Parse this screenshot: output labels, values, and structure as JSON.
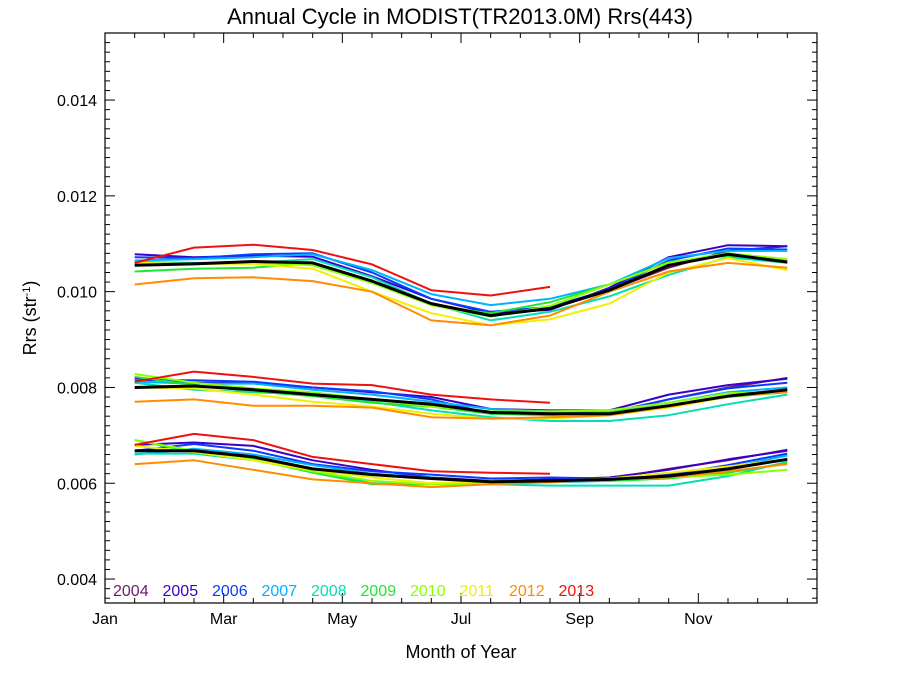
{
  "chart_data": {
    "type": "line",
    "title": "Annual Cycle in MODIST(TR2013.0M) Rrs(443)",
    "xlabel": "Month of Year",
    "ylabel_main": "Rrs (str",
    "ylabel_sup": "-1",
    "ylabel_close": ")",
    "xlim": [
      0.5,
      12.5
    ],
    "ylim": [
      0.0035,
      0.0154
    ],
    "x_ticks": [
      {
        "x": 0.5,
        "label": "Jan"
      },
      {
        "x": 2.5,
        "label": "Mar"
      },
      {
        "x": 4.5,
        "label": "May"
      },
      {
        "x": 6.5,
        "label": "Jul"
      },
      {
        "x": 8.5,
        "label": "Sep"
      },
      {
        "x": 10.5,
        "label": "Nov"
      }
    ],
    "y_ticks": [
      {
        "y": 0.004,
        "label": "0.004"
      },
      {
        "y": 0.006,
        "label": "0.006"
      },
      {
        "y": 0.008,
        "label": "0.008"
      },
      {
        "y": 0.01,
        "label": "0.010"
      },
      {
        "y": 0.012,
        "label": "0.012"
      },
      {
        "y": 0.014,
        "label": "0.014"
      }
    ],
    "grid": false,
    "legend_position": "bottom-left",
    "x": [
      1,
      2,
      3,
      4,
      5,
      6,
      7,
      8,
      9,
      10,
      11,
      12
    ],
    "groups": [
      {
        "series": [
          {
            "name": "2004",
            "color": "#6a1b6a",
            "values": [
              null,
              null,
              null,
              null,
              null,
              null,
              null,
              null,
              0.01003,
              0.0105,
              0.01085,
              0.01095
            ]
          },
          {
            "name": "2005",
            "color": "#3a00c8",
            "values": [
              0.01078,
              0.01072,
              0.01075,
              0.01073,
              0.01032,
              0.00985,
              0.00955,
              0.00962,
              0.01008,
              0.01072,
              0.01097,
              0.01095
            ]
          },
          {
            "name": "2006",
            "color": "#0a3cff",
            "values": [
              0.01072,
              0.0107,
              0.01078,
              0.0108,
              0.0104,
              0.00985,
              0.00958,
              0.00968,
              0.01005,
              0.01065,
              0.0109,
              0.01088
            ]
          },
          {
            "name": "2007",
            "color": "#00b2ff",
            "values": [
              0.01065,
              0.01068,
              0.01072,
              0.01078,
              0.01045,
              0.00995,
              0.00972,
              0.00985,
              0.01015,
              0.0107,
              0.01085,
              0.01085
            ]
          },
          {
            "name": "2008",
            "color": "#00e0b4",
            "values": [
              0.01062,
              0.0106,
              0.0106,
              0.01068,
              0.0103,
              0.00975,
              0.0094,
              0.00958,
              0.0099,
              0.01035,
              0.01072,
              0.0106
            ]
          },
          {
            "name": "2009",
            "color": "#1ee632",
            "values": [
              0.01042,
              0.01048,
              0.0105,
              0.0106,
              0.01022,
              0.00972,
              0.00955,
              0.00978,
              0.01015,
              0.01062,
              0.01075,
              0.01068
            ]
          },
          {
            "name": "2010",
            "color": "#8cff00",
            "values": [
              0.0106,
              0.01058,
              0.0106,
              0.01055,
              0.01018,
              0.00972,
              0.00948,
              0.0097,
              0.01015,
              0.0106,
              0.0108,
              0.01068
            ]
          },
          {
            "name": "2011",
            "color": "#f0f000",
            "values": [
              0.0106,
              0.01058,
              0.01058,
              0.01048,
              0.01,
              0.00955,
              0.0093,
              0.00942,
              0.00975,
              0.0104,
              0.0107,
              0.01045
            ]
          },
          {
            "name": "2012",
            "color": "#ff8c00",
            "values": [
              0.01015,
              0.01028,
              0.0103,
              0.01022,
              0.01,
              0.0094,
              0.0093,
              0.0095,
              0.01,
              0.01042,
              0.0106,
              0.0105
            ]
          },
          {
            "name": "2013",
            "color": "#ee1111",
            "values": [
              0.0106,
              0.01092,
              0.01098,
              0.01087,
              0.01057,
              0.01003,
              0.00992,
              0.0101,
              null,
              null,
              null,
              null
            ]
          },
          {
            "name": "",
            "color": "#000000",
            "width": 3,
            "values": [
              0.01055,
              0.01058,
              0.01063,
              0.0106,
              0.01022,
              0.00975,
              0.0095,
              0.00965,
              0.01003,
              0.01055,
              0.01078,
              0.01062
            ]
          }
        ]
      },
      {
        "series": [
          {
            "name": "2004",
            "color": "#6a1b6a",
            "values": [
              null,
              null,
              null,
              null,
              null,
              null,
              null,
              null,
              0.00745,
              0.00775,
              0.008,
              0.0082
            ]
          },
          {
            "name": "2005",
            "color": "#3a00c8",
            "values": [
              0.0082,
              0.0081,
              0.0081,
              0.008,
              0.0079,
              0.0078,
              0.00755,
              0.00752,
              0.00752,
              0.00785,
              0.00805,
              0.00818
            ]
          },
          {
            "name": "2006",
            "color": "#0a3cff",
            "values": [
              0.00815,
              0.00815,
              0.00812,
              0.008,
              0.00792,
              0.00775,
              0.00745,
              0.00745,
              0.00748,
              0.00775,
              0.00798,
              0.0081
            ]
          },
          {
            "name": "2007",
            "color": "#00b2ff",
            "values": [
              0.00812,
              0.00808,
              0.00808,
              0.00795,
              0.00785,
              0.0077,
              0.00755,
              0.0075,
              0.0075,
              0.00768,
              0.0079,
              0.008
            ]
          },
          {
            "name": "2008",
            "color": "#00e0b4",
            "values": [
              0.0081,
              0.00795,
              0.0079,
              0.00785,
              0.0077,
              0.00752,
              0.00738,
              0.0073,
              0.0073,
              0.00742,
              0.00765,
              0.00785
            ]
          },
          {
            "name": "2009",
            "color": "#1ee632",
            "values": [
              0.00822,
              0.00805,
              0.00792,
              0.00782,
              0.00768,
              0.0076,
              0.00745,
              0.00742,
              0.00748,
              0.00762,
              0.0078,
              0.0079
            ]
          },
          {
            "name": "2010",
            "color": "#8cff00",
            "values": [
              0.00828,
              0.0081,
              0.00798,
              0.0079,
              0.00775,
              0.0076,
              0.0075,
              0.0075,
              0.00752,
              0.00768,
              0.00788,
              0.00792
            ]
          },
          {
            "name": "2011",
            "color": "#f0f000",
            "values": [
              0.008,
              0.00798,
              0.00785,
              0.0077,
              0.0076,
              0.00745,
              0.00735,
              0.00735,
              0.00742,
              0.00758,
              0.0078,
              0.00795
            ]
          },
          {
            "name": "2012",
            "color": "#ff8c00",
            "values": [
              0.0077,
              0.00775,
              0.00762,
              0.00762,
              0.00758,
              0.00738,
              0.00735,
              0.00738,
              0.00742,
              0.0076,
              0.00782,
              0.0079
            ]
          },
          {
            "name": "2013",
            "color": "#ee1111",
            "values": [
              0.00812,
              0.00833,
              0.00822,
              0.00808,
              0.00805,
              0.00785,
              0.00775,
              0.00768,
              null,
              null,
              null,
              null
            ]
          },
          {
            "name": "",
            "color": "#000000",
            "width": 3,
            "values": [
              0.008,
              0.00803,
              0.00795,
              0.00785,
              0.00775,
              0.00765,
              0.00748,
              0.00745,
              0.00745,
              0.00762,
              0.00782,
              0.00795
            ]
          }
        ]
      },
      {
        "series": [
          {
            "name": "2004",
            "color": "#6a1b6a",
            "values": [
              null,
              null,
              null,
              null,
              null,
              null,
              null,
              null,
              0.0061,
              0.0063,
              0.00648,
              0.0067
            ]
          },
          {
            "name": "2005",
            "color": "#3a00c8",
            "values": [
              0.0068,
              0.00685,
              0.00678,
              0.00648,
              0.00628,
              0.00612,
              0.00605,
              0.00608,
              0.00612,
              0.00628,
              0.0065,
              0.00668
            ]
          },
          {
            "name": "2006",
            "color": "#0a3cff",
            "values": [
              0.00668,
              0.00682,
              0.00668,
              0.0064,
              0.00625,
              0.00618,
              0.0061,
              0.00612,
              0.0061,
              0.00618,
              0.00638,
              0.00662
            ]
          },
          {
            "name": "2007",
            "color": "#00b2ff",
            "values": [
              0.0066,
              0.00672,
              0.0066,
              0.00638,
              0.0062,
              0.00612,
              0.006,
              0.00602,
              0.00605,
              0.00612,
              0.00632,
              0.00658
            ]
          },
          {
            "name": "2008",
            "color": "#00e0b4",
            "values": [
              0.00662,
              0.00662,
              0.00648,
              0.00628,
              0.006,
              0.006,
              0.00598,
              0.00595,
              0.00595,
              0.00595,
              0.00615,
              0.00645
            ]
          },
          {
            "name": "2009",
            "color": "#1ee632",
            "values": [
              0.0069,
              0.00665,
              0.0065,
              0.00622,
              0.00598,
              0.00598,
              0.00598,
              0.00605,
              0.00605,
              0.0061,
              0.00622,
              0.00642
            ]
          },
          {
            "name": "2010",
            "color": "#8cff00",
            "values": [
              0.0069,
              0.00668,
              0.00648,
              0.00625,
              0.00605,
              0.00598,
              0.006,
              0.00605,
              0.00608,
              0.00612,
              0.00618,
              0.00628
            ]
          },
          {
            "name": "2011",
            "color": "#f0f000",
            "values": [
              0.00678,
              0.00665,
              0.00648,
              0.00628,
              0.00612,
              0.006,
              0.00605,
              0.00605,
              0.0061,
              0.00622,
              0.00635,
              0.0065
            ]
          },
          {
            "name": "2012",
            "color": "#ff8c00",
            "values": [
              0.0064,
              0.00648,
              0.00628,
              0.00608,
              0.006,
              0.00592,
              0.00598,
              0.00602,
              0.00608,
              0.00612,
              0.00625,
              0.0064
            ]
          },
          {
            "name": "2013",
            "color": "#ee1111",
            "values": [
              0.0068,
              0.00703,
              0.0069,
              0.00655,
              0.0064,
              0.00625,
              0.00622,
              0.0062,
              null,
              null,
              null,
              null
            ]
          },
          {
            "name": "",
            "color": "#000000",
            "width": 3,
            "values": [
              0.00668,
              0.00668,
              0.00655,
              0.0063,
              0.00618,
              0.0061,
              0.00603,
              0.00605,
              0.00608,
              0.00615,
              0.0063,
              0.0065
            ]
          }
        ]
      }
    ],
    "legend": [
      {
        "label": "2004",
        "color": "#6a1b6a"
      },
      {
        "label": "2005",
        "color": "#3a00c8"
      },
      {
        "label": "2006",
        "color": "#0a3cff"
      },
      {
        "label": "2007",
        "color": "#00b2ff"
      },
      {
        "label": "2008",
        "color": "#00e0b4"
      },
      {
        "label": "2009",
        "color": "#1ee632"
      },
      {
        "label": "2010",
        "color": "#8cff00"
      },
      {
        "label": "2011",
        "color": "#f0f000"
      },
      {
        "label": "2012",
        "color": "#ff8c00"
      },
      {
        "label": "2013",
        "color": "#ee1111"
      }
    ]
  }
}
